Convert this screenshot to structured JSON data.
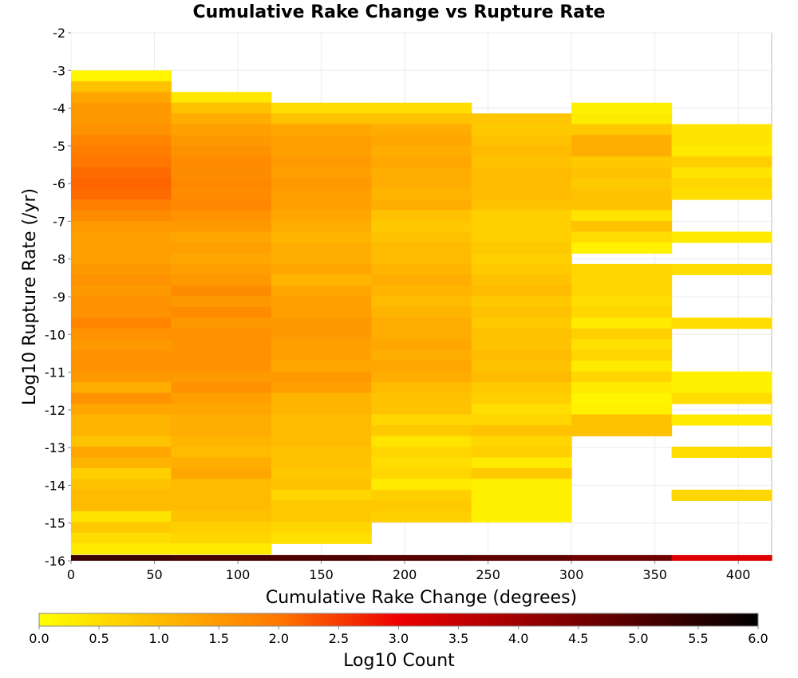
{
  "chart_data": {
    "type": "heatmap",
    "title": "Cumulative Rake Change vs Rupture Rate",
    "xlabel": "Cumulative Rake Change (degrees)",
    "ylabel": "Log10 Rupture Rate (/yr)",
    "xlim": [
      0,
      420
    ],
    "ylim": [
      -16,
      -2
    ],
    "x_ticks": [
      0,
      50,
      100,
      150,
      200,
      250,
      300,
      350,
      400
    ],
    "y_ticks": [
      -2,
      -3,
      -4,
      -5,
      -6,
      -7,
      -8,
      -9,
      -10,
      -11,
      -12,
      -13,
      -14,
      -15,
      -16
    ],
    "colorbar": {
      "label": "Log10 Count",
      "range": [
        0,
        6
      ],
      "ticks": [
        "0.0",
        "0.5",
        "1.0",
        "1.5",
        "2.0",
        "2.5",
        "3.0",
        "3.5",
        "4.0",
        "4.5",
        "5.0",
        "5.5",
        "6.0"
      ],
      "colors": [
        "#ffff00",
        "#ff7700",
        "#ee0000",
        "#000000"
      ]
    },
    "x_bin_width": 60,
    "y_bin_height": 0.285,
    "columns": [
      {
        "x0": 0,
        "x1": 60,
        "cells": [
          [
            -3.0,
            0.15
          ],
          [
            -3.285,
            0.9
          ],
          [
            -3.57,
            1.3
          ],
          [
            -3.855,
            1.5
          ],
          [
            -4.14,
            1.5
          ],
          [
            -4.425,
            1.6
          ],
          [
            -4.71,
            1.8
          ],
          [
            -4.995,
            1.9
          ],
          [
            -5.28,
            2.0
          ],
          [
            -5.565,
            2.1
          ],
          [
            -5.85,
            2.15
          ],
          [
            -6.135,
            2.1
          ],
          [
            -6.42,
            1.9
          ],
          [
            -6.705,
            1.7
          ],
          [
            -6.99,
            1.5
          ],
          [
            -7.275,
            1.4
          ],
          [
            -7.56,
            1.4
          ],
          [
            -7.845,
            1.4
          ],
          [
            -8.13,
            1.5
          ],
          [
            -8.415,
            1.6
          ],
          [
            -8.7,
            1.5
          ],
          [
            -8.985,
            1.6
          ],
          [
            -9.27,
            1.6
          ],
          [
            -9.555,
            1.8
          ],
          [
            -9.84,
            1.6
          ],
          [
            -10.125,
            1.5
          ],
          [
            -10.41,
            1.6
          ],
          [
            -10.695,
            1.6
          ],
          [
            -10.98,
            1.5
          ],
          [
            -11.265,
            1.2
          ],
          [
            -11.55,
            1.6
          ],
          [
            -11.835,
            1.3
          ],
          [
            -12.12,
            1.1
          ],
          [
            -12.405,
            1.1
          ],
          [
            -12.69,
            0.9
          ],
          [
            -12.975,
            1.3
          ],
          [
            -13.26,
            1.1
          ],
          [
            -13.545,
            0.7
          ],
          [
            -13.83,
            0.9
          ],
          [
            -14.115,
            1.0
          ],
          [
            -14.4,
            1.0
          ],
          [
            -14.685,
            0.4
          ],
          [
            -14.97,
            0.8
          ],
          [
            -15.255,
            0.5
          ],
          [
            -15.54,
            0.3
          ]
        ]
      },
      {
        "x0": 60,
        "x1": 120,
        "cells": [
          [
            -3.57,
            0.35
          ],
          [
            -3.855,
            0.9
          ],
          [
            -4.14,
            1.2
          ],
          [
            -4.425,
            1.4
          ],
          [
            -4.71,
            1.5
          ],
          [
            -4.995,
            1.6
          ],
          [
            -5.28,
            1.7
          ],
          [
            -5.565,
            1.7
          ],
          [
            -5.85,
            1.75
          ],
          [
            -6.135,
            1.7
          ],
          [
            -6.42,
            1.75
          ],
          [
            -6.705,
            1.6
          ],
          [
            -6.99,
            1.5
          ],
          [
            -7.275,
            1.3
          ],
          [
            -7.56,
            1.4
          ],
          [
            -7.845,
            1.3
          ],
          [
            -8.13,
            1.4
          ],
          [
            -8.415,
            1.5
          ],
          [
            -8.7,
            1.7
          ],
          [
            -8.985,
            1.5
          ],
          [
            -9.27,
            1.7
          ],
          [
            -9.555,
            1.5
          ],
          [
            -9.84,
            1.6
          ],
          [
            -10.125,
            1.6
          ],
          [
            -10.41,
            1.6
          ],
          [
            -10.695,
            1.6
          ],
          [
            -10.98,
            1.5
          ],
          [
            -11.265,
            1.6
          ],
          [
            -11.55,
            1.4
          ],
          [
            -11.835,
            1.3
          ],
          [
            -12.12,
            1.2
          ],
          [
            -12.405,
            1.2
          ],
          [
            -12.69,
            1.1
          ],
          [
            -12.975,
            1.0
          ],
          [
            -13.26,
            1.2
          ],
          [
            -13.545,
            1.3
          ],
          [
            -13.83,
            1.0
          ],
          [
            -14.115,
            1.0
          ],
          [
            -14.4,
            1.0
          ],
          [
            -14.685,
            0.9
          ],
          [
            -14.97,
            0.7
          ],
          [
            -15.255,
            0.6
          ],
          [
            -15.54,
            0.3
          ]
        ]
      },
      {
        "x0": 120,
        "x1": 180,
        "cells": [
          [
            -3.855,
            0.5
          ],
          [
            -4.14,
            0.9
          ],
          [
            -4.425,
            1.3
          ],
          [
            -4.71,
            1.4
          ],
          [
            -4.995,
            1.4
          ],
          [
            -5.28,
            1.5
          ],
          [
            -5.565,
            1.4
          ],
          [
            -5.85,
            1.5
          ],
          [
            -6.135,
            1.4
          ],
          [
            -6.42,
            1.4
          ],
          [
            -6.705,
            1.3
          ],
          [
            -6.99,
            1.2
          ],
          [
            -7.275,
            1.1
          ],
          [
            -7.56,
            1.2
          ],
          [
            -7.845,
            1.2
          ],
          [
            -8.13,
            1.3
          ],
          [
            -8.415,
            1.1
          ],
          [
            -8.7,
            1.3
          ],
          [
            -8.985,
            1.4
          ],
          [
            -9.27,
            1.4
          ],
          [
            -9.555,
            1.5
          ],
          [
            -9.84,
            1.5
          ],
          [
            -10.125,
            1.4
          ],
          [
            -10.41,
            1.4
          ],
          [
            -10.695,
            1.3
          ],
          [
            -10.98,
            1.5
          ],
          [
            -11.265,
            1.4
          ],
          [
            -11.55,
            1.1
          ],
          [
            -11.835,
            1.1
          ],
          [
            -12.12,
            1.0
          ],
          [
            -12.405,
            1.0
          ],
          [
            -12.69,
            1.0
          ],
          [
            -12.975,
            0.9
          ],
          [
            -13.26,
            0.9
          ],
          [
            -13.545,
            0.8
          ],
          [
            -13.83,
            0.9
          ],
          [
            -14.115,
            0.6
          ],
          [
            -14.4,
            0.8
          ],
          [
            -14.685,
            0.8
          ],
          [
            -14.97,
            0.6
          ],
          [
            -15.255,
            0.45
          ]
        ]
      },
      {
        "x0": 180,
        "x1": 240,
        "cells": [
          [
            -3.855,
            0.5
          ],
          [
            -4.14,
            0.9
          ],
          [
            -4.425,
            1.2
          ],
          [
            -4.71,
            1.3
          ],
          [
            -4.995,
            1.2
          ],
          [
            -5.28,
            1.3
          ],
          [
            -5.565,
            1.2
          ],
          [
            -5.85,
            1.2
          ],
          [
            -6.135,
            1.1
          ],
          [
            -6.42,
            1.2
          ],
          [
            -6.705,
            0.9
          ],
          [
            -6.99,
            0.8
          ],
          [
            -7.275,
            0.9
          ],
          [
            -7.56,
            1.0
          ],
          [
            -7.845,
            1.0
          ],
          [
            -8.13,
            1.1
          ],
          [
            -8.415,
            1.2
          ],
          [
            -8.7,
            1.1
          ],
          [
            -8.985,
            1.0
          ],
          [
            -9.27,
            1.1
          ],
          [
            -9.555,
            1.2
          ],
          [
            -9.84,
            1.2
          ],
          [
            -10.125,
            1.3
          ],
          [
            -10.41,
            1.2
          ],
          [
            -10.695,
            1.3
          ],
          [
            -10.98,
            1.2
          ],
          [
            -11.265,
            1.0
          ],
          [
            -11.55,
            0.9
          ],
          [
            -11.835,
            0.9
          ],
          [
            -12.12,
            0.6
          ],
          [
            -12.405,
            0.8
          ],
          [
            -12.69,
            0.4
          ],
          [
            -12.975,
            0.6
          ],
          [
            -13.26,
            0.5
          ],
          [
            -13.545,
            0.6
          ],
          [
            -13.83,
            0.3
          ],
          [
            -14.115,
            0.7
          ],
          [
            -14.4,
            0.8
          ],
          [
            -14.685,
            0.7
          ]
        ]
      },
      {
        "x0": 240,
        "x1": 300,
        "cells": [
          [
            -4.14,
            0.85
          ],
          [
            -4.425,
            0.8
          ],
          [
            -4.71,
            0.9
          ],
          [
            -4.995,
            1.0
          ],
          [
            -5.28,
            0.9
          ],
          [
            -5.565,
            1.0
          ],
          [
            -5.85,
            1.0
          ],
          [
            -6.135,
            1.0
          ],
          [
            -6.42,
            0.9
          ],
          [
            -6.705,
            0.7
          ],
          [
            -6.99,
            0.7
          ],
          [
            -7.275,
            0.7
          ],
          [
            -7.56,
            0.8
          ],
          [
            -7.845,
            0.7
          ],
          [
            -8.13,
            0.8
          ],
          [
            -8.415,
            0.9
          ],
          [
            -8.7,
            1.0
          ],
          [
            -8.985,
            0.8
          ],
          [
            -9.27,
            0.9
          ],
          [
            -9.555,
            0.8
          ],
          [
            -9.84,
            0.9
          ],
          [
            -10.125,
            0.9
          ],
          [
            -10.41,
            1.0
          ],
          [
            -10.695,
            0.9
          ],
          [
            -10.98,
            1.0
          ],
          [
            -11.265,
            0.8
          ],
          [
            -11.55,
            0.7
          ],
          [
            -11.835,
            0.5
          ],
          [
            -12.12,
            0.6
          ],
          [
            -12.405,
            0.9
          ],
          [
            -12.69,
            0.6
          ],
          [
            -12.975,
            0.7
          ],
          [
            -13.26,
            0.3
          ],
          [
            -13.545,
            0.8
          ],
          [
            -13.83,
            0.2
          ],
          [
            -14.115,
            0.2
          ],
          [
            -14.4,
            0.2
          ],
          [
            -14.685,
            0.2
          ]
        ]
      },
      {
        "x0": 300,
        "x1": 360,
        "cells": [
          [
            -3.855,
            0.2
          ],
          [
            -4.14,
            0.3
          ],
          [
            -4.425,
            0.8
          ],
          [
            -4.71,
            1.2
          ],
          [
            -4.995,
            1.2
          ],
          [
            -5.28,
            0.8
          ],
          [
            -5.565,
            0.9
          ],
          [
            -5.85,
            0.8
          ],
          [
            -6.135,
            0.9
          ],
          [
            -6.42,
            0.9
          ],
          [
            -6.705,
            0.4
          ],
          [
            -6.99,
            0.9
          ],
          [
            -7.275,
            0.5
          ],
          [
            -7.56,
            0.2
          ],
          [
            -8.13,
            0.6
          ],
          [
            -8.415,
            0.6
          ],
          [
            -8.7,
            0.6
          ],
          [
            -8.985,
            0.5
          ],
          [
            -9.27,
            0.6
          ],
          [
            -9.555,
            0.3
          ],
          [
            -9.84,
            0.7
          ],
          [
            -10.125,
            0.45
          ],
          [
            -10.41,
            0.6
          ],
          [
            -10.695,
            0.3
          ],
          [
            -10.98,
            0.6
          ],
          [
            -11.265,
            0.3
          ],
          [
            -11.55,
            0.15
          ],
          [
            -11.835,
            0.2
          ],
          [
            -12.12,
            0.9
          ],
          [
            -12.405,
            0.9
          ]
        ]
      },
      {
        "x0": 360,
        "x1": 420,
        "cells": [
          [
            -4.425,
            0.4
          ],
          [
            -4.71,
            0.4
          ],
          [
            -4.995,
            0.3
          ],
          [
            -5.28,
            0.7
          ],
          [
            -5.565,
            0.4
          ],
          [
            -5.85,
            0.6
          ],
          [
            -6.135,
            0.5
          ],
          [
            -7.275,
            0.3
          ],
          [
            -8.13,
            0.5
          ],
          [
            -9.555,
            0.5
          ],
          [
            -10.98,
            0.2
          ],
          [
            -11.265,
            0.2
          ],
          [
            -11.55,
            0.5
          ],
          [
            -12.12,
            0.3
          ],
          [
            -12.975,
            0.5
          ],
          [
            -14.115,
            0.6
          ]
        ]
      }
    ],
    "bottom_row": {
      "y0": -16.0,
      "y1": -15.85,
      "cells": [
        [
          0,
          60,
          5.2
        ],
        [
          60,
          120,
          5.1
        ],
        [
          120,
          180,
          5.0
        ],
        [
          180,
          240,
          4.9
        ],
        [
          240,
          300,
          4.8
        ],
        [
          300,
          360,
          4.6
        ],
        [
          360,
          420,
          3.2
        ]
      ]
    }
  }
}
